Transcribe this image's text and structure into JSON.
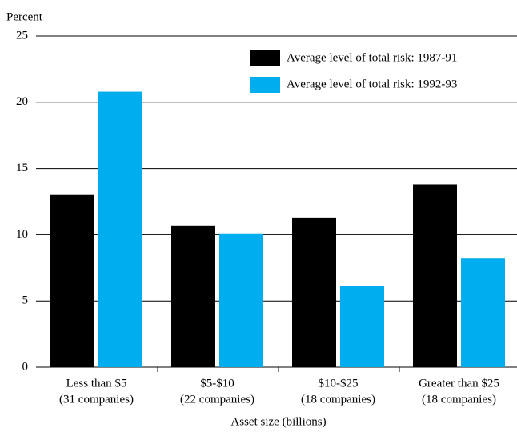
{
  "chart_data": {
    "type": "bar",
    "y_label": "Percent",
    "x_label": "Asset size (billions)",
    "categories": [
      [
        "Less than $5",
        "(31 companies)"
      ],
      [
        "$5-$10",
        "(22 companies)"
      ],
      [
        "$10-$25",
        "(18 companies)"
      ],
      [
        "Greater than $25",
        "(18 companies)"
      ]
    ],
    "series": [
      {
        "name": "Average level of total risk:  1987-91",
        "color": "#000000",
        "values": [
          13.0,
          10.7,
          11.3,
          13.8
        ]
      },
      {
        "name": "Average level of total risk:  1992-93",
        "color": "#00aeef",
        "values": [
          20.8,
          10.1,
          6.1,
          8.2
        ]
      }
    ],
    "ylim": [
      0,
      25
    ],
    "yticks": [
      0,
      5,
      10,
      15,
      20,
      25
    ],
    "grid": true,
    "legend": "top-right"
  }
}
